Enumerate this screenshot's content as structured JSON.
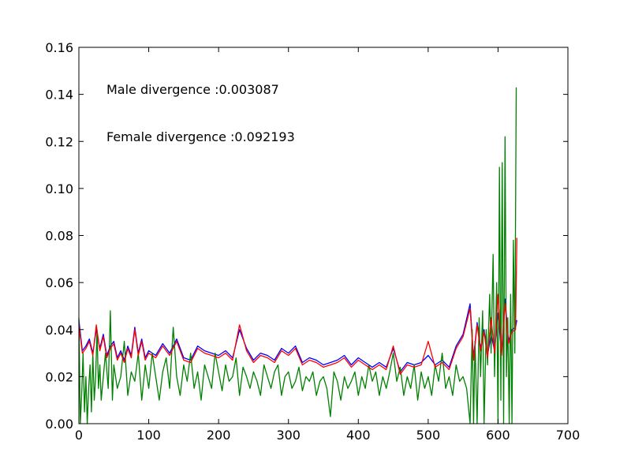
{
  "chart_data": {
    "type": "line",
    "title": "",
    "xlabel": "",
    "ylabel": "",
    "xlim": [
      0,
      700
    ],
    "ylim": [
      0,
      0.16
    ],
    "xticks": [
      0,
      100,
      200,
      300,
      400,
      500,
      600,
      700
    ],
    "xtick_labels": [
      "0",
      "100",
      "200",
      "300",
      "400",
      "500",
      "600",
      "700"
    ],
    "yticks": [
      0,
      0.02,
      0.04,
      0.06,
      0.08,
      0.1,
      0.12,
      0.14,
      0.16
    ],
    "ytick_labels": [
      "0.00",
      "0.02",
      "0.04",
      "0.06",
      "0.08",
      "0.10",
      "0.12",
      "0.14",
      "0.16"
    ],
    "grid": false,
    "annotations": [
      {
        "text": "Male divergence :0.003087",
        "x": 40,
        "y": 0.141
      },
      {
        "text": "Female divergence :0.092193",
        "x": 40,
        "y": 0.121
      }
    ],
    "series": [
      {
        "color": "#0000ff",
        "x": [
          0,
          5,
          10,
          15,
          20,
          25,
          30,
          35,
          40,
          45,
          50,
          55,
          60,
          65,
          70,
          75,
          80,
          85,
          90,
          95,
          100,
          110,
          120,
          130,
          140,
          150,
          160,
          170,
          180,
          190,
          200,
          210,
          220,
          230,
          240,
          250,
          260,
          270,
          280,
          290,
          300,
          310,
          320,
          330,
          340,
          350,
          360,
          370,
          380,
          390,
          400,
          410,
          420,
          430,
          440,
          450,
          460,
          470,
          480,
          490,
          500,
          510,
          520,
          530,
          540,
          550,
          560,
          565,
          570,
          575,
          580,
          585,
          590,
          595,
          600,
          605,
          610,
          615,
          620,
          625,
          627
        ],
        "values": [
          0.044,
          0.031,
          0.033,
          0.036,
          0.03,
          0.04,
          0.032,
          0.038,
          0.029,
          0.033,
          0.035,
          0.028,
          0.031,
          0.027,
          0.033,
          0.029,
          0.041,
          0.03,
          0.036,
          0.028,
          0.031,
          0.029,
          0.034,
          0.03,
          0.036,
          0.028,
          0.027,
          0.033,
          0.031,
          0.03,
          0.029,
          0.031,
          0.028,
          0.04,
          0.032,
          0.027,
          0.03,
          0.029,
          0.027,
          0.032,
          0.03,
          0.033,
          0.026,
          0.028,
          0.027,
          0.025,
          0.026,
          0.027,
          0.029,
          0.025,
          0.028,
          0.026,
          0.024,
          0.026,
          0.024,
          0.032,
          0.022,
          0.026,
          0.025,
          0.026,
          0.029,
          0.025,
          0.027,
          0.024,
          0.033,
          0.038,
          0.051,
          0.028,
          0.043,
          0.032,
          0.04,
          0.029,
          0.038,
          0.031,
          0.047,
          0.03,
          0.053,
          0.035,
          0.04,
          0.041,
          0.044
        ]
      },
      {
        "color": "#ff0000",
        "x": [
          0,
          5,
          10,
          15,
          20,
          25,
          30,
          35,
          40,
          45,
          50,
          55,
          60,
          65,
          70,
          75,
          80,
          85,
          90,
          95,
          100,
          110,
          120,
          130,
          140,
          150,
          160,
          170,
          180,
          190,
          200,
          210,
          220,
          230,
          240,
          250,
          260,
          270,
          280,
          290,
          300,
          310,
          320,
          330,
          340,
          350,
          360,
          370,
          380,
          390,
          400,
          410,
          420,
          430,
          440,
          450,
          460,
          470,
          480,
          490,
          500,
          510,
          520,
          530,
          540,
          550,
          560,
          565,
          570,
          575,
          580,
          585,
          590,
          595,
          600,
          605,
          610,
          615,
          620,
          625,
          627
        ],
        "values": [
          0.042,
          0.03,
          0.032,
          0.035,
          0.029,
          0.042,
          0.031,
          0.037,
          0.028,
          0.032,
          0.034,
          0.027,
          0.03,
          0.026,
          0.032,
          0.028,
          0.04,
          0.029,
          0.035,
          0.027,
          0.03,
          0.028,
          0.033,
          0.029,
          0.035,
          0.027,
          0.026,
          0.032,
          0.03,
          0.029,
          0.028,
          0.03,
          0.027,
          0.042,
          0.031,
          0.026,
          0.029,
          0.028,
          0.026,
          0.031,
          0.029,
          0.032,
          0.025,
          0.027,
          0.026,
          0.024,
          0.025,
          0.026,
          0.028,
          0.024,
          0.027,
          0.025,
          0.023,
          0.025,
          0.023,
          0.033,
          0.021,
          0.025,
          0.024,
          0.025,
          0.035,
          0.024,
          0.026,
          0.023,
          0.032,
          0.037,
          0.049,
          0.027,
          0.042,
          0.031,
          0.039,
          0.028,
          0.045,
          0.03,
          0.055,
          0.029,
          0.051,
          0.034,
          0.039,
          0.04,
          0.079
        ]
      },
      {
        "color": "#008000",
        "x": [
          0,
          2,
          4,
          6,
          8,
          10,
          12,
          14,
          16,
          18,
          20,
          22,
          24,
          26,
          28,
          30,
          32,
          35,
          38,
          42,
          45,
          48,
          50,
          55,
          60,
          65,
          70,
          75,
          80,
          85,
          90,
          95,
          100,
          105,
          110,
          115,
          120,
          125,
          130,
          135,
          140,
          145,
          150,
          155,
          160,
          165,
          170,
          175,
          180,
          185,
          190,
          195,
          200,
          205,
          210,
          215,
          220,
          225,
          230,
          235,
          240,
          245,
          250,
          255,
          260,
          265,
          270,
          275,
          280,
          285,
          290,
          295,
          300,
          305,
          310,
          315,
          320,
          325,
          330,
          335,
          340,
          345,
          350,
          355,
          360,
          365,
          370,
          375,
          380,
          385,
          390,
          395,
          400,
          405,
          410,
          415,
          420,
          425,
          430,
          435,
          440,
          445,
          450,
          455,
          460,
          465,
          470,
          475,
          480,
          485,
          490,
          495,
          500,
          505,
          510,
          515,
          520,
          525,
          530,
          535,
          540,
          545,
          550,
          555,
          560,
          563,
          565,
          567,
          570,
          573,
          575,
          578,
          580,
          583,
          585,
          588,
          590,
          593,
          595,
          598,
          600,
          602,
          604,
          606,
          608,
          610,
          612,
          614,
          616,
          618,
          620,
          622,
          624,
          626
        ],
        "values": [
          0.045,
          0.0,
          0.012,
          0.03,
          0.005,
          0.02,
          0.0,
          0.015,
          0.025,
          0.005,
          0.03,
          0.01,
          0.02,
          0.04,
          0.015,
          0.025,
          0.01,
          0.02,
          0.03,
          0.015,
          0.048,
          0.01,
          0.025,
          0.015,
          0.02,
          0.035,
          0.012,
          0.022,
          0.018,
          0.03,
          0.01,
          0.025,
          0.015,
          0.03,
          0.02,
          0.01,
          0.022,
          0.028,
          0.015,
          0.041,
          0.02,
          0.012,
          0.025,
          0.018,
          0.03,
          0.015,
          0.022,
          0.01,
          0.025,
          0.02,
          0.015,
          0.03,
          0.022,
          0.014,
          0.025,
          0.018,
          0.02,
          0.028,
          0.012,
          0.024,
          0.02,
          0.015,
          0.022,
          0.018,
          0.012,
          0.025,
          0.02,
          0.015,
          0.022,
          0.025,
          0.012,
          0.02,
          0.022,
          0.015,
          0.018,
          0.024,
          0.014,
          0.02,
          0.018,
          0.022,
          0.012,
          0.018,
          0.02,
          0.015,
          0.003,
          0.022,
          0.018,
          0.01,
          0.02,
          0.015,
          0.018,
          0.022,
          0.012,
          0.02,
          0.015,
          0.025,
          0.018,
          0.022,
          0.012,
          0.02,
          0.015,
          0.022,
          0.03,
          0.018,
          0.024,
          0.012,
          0.02,
          0.015,
          0.025,
          0.01,
          0.022,
          0.015,
          0.02,
          0.012,
          0.025,
          0.018,
          0.03,
          0.015,
          0.02,
          0.012,
          0.025,
          0.018,
          0.02,
          0.015,
          0.0,
          0.04,
          0.0,
          0.035,
          0.0,
          0.045,
          0.02,
          0.048,
          0.0,
          0.04,
          0.025,
          0.055,
          0.03,
          0.072,
          0.02,
          0.06,
          0.0,
          0.109,
          0.01,
          0.111,
          0.0,
          0.122,
          0.02,
          0.045,
          0.0,
          0.055,
          0.0,
          0.078,
          0.03,
          0.143
        ]
      }
    ]
  }
}
